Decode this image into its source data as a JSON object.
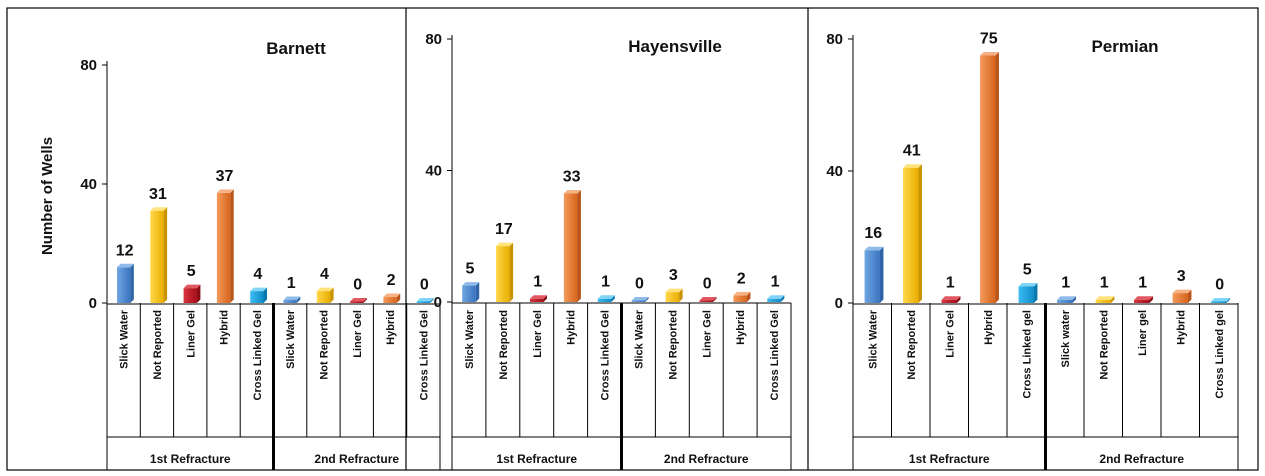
{
  "chart_data": [
    {
      "type": "bar",
      "title": "Barnett",
      "ylabel": "Number of Wells",
      "yticks": [
        0,
        40,
        80
      ],
      "ylim": [
        0,
        80
      ],
      "groups": [
        {
          "label": "1st Refracture",
          "categories": [
            "Slick Water",
            "Not Reported",
            "Liner Gel",
            "Hybrid",
            "Cross Linked Gel"
          ],
          "values": [
            12,
            31,
            5,
            37,
            4
          ]
        },
        {
          "label": "2nd Refracture",
          "categories": [
            "Slick Water",
            "Not Reported",
            "Liner Gel",
            "Hybrid",
            "Cross Linked Gel"
          ],
          "values": [
            1,
            4,
            0,
            2,
            0
          ]
        }
      ]
    },
    {
      "type": "bar",
      "title": "Hayensville",
      "ylabel": "",
      "yticks": [
        0,
        40,
        80
      ],
      "ylim": [
        0,
        80
      ],
      "groups": [
        {
          "label": "1st Refracture",
          "categories": [
            "Slick Water",
            "Not Reported",
            "Liner Gel",
            "Hybrid",
            "Cross Linked Gel"
          ],
          "values": [
            5,
            17,
            1,
            33,
            1
          ]
        },
        {
          "label": "2nd Refracture",
          "categories": [
            "Slick Water",
            "Not Reported",
            "Liner Gel",
            "Hybrid",
            "Cross Linked Gel"
          ],
          "values": [
            0,
            3,
            0,
            2,
            1
          ]
        }
      ]
    },
    {
      "type": "bar",
      "title": "Permian",
      "ylabel": "",
      "yticks": [
        0,
        40,
        80
      ],
      "ylim": [
        0,
        80
      ],
      "groups": [
        {
          "label": "1st Refracture",
          "categories": [
            "Slick Water",
            "Not Reported",
            "Liner Gel",
            "Hybrid",
            "Cross Linked gel"
          ],
          "values": [
            16,
            41,
            1,
            75,
            5
          ]
        },
        {
          "label": "2nd Refracture",
          "categories": [
            "Slick water",
            "Not Reported",
            "Liner gel",
            "Hybrid",
            "Cross Linked gel"
          ],
          "values": [
            1,
            1,
            1,
            3,
            0
          ]
        }
      ]
    }
  ],
  "colors": {
    "slick_water": "#4f8fd6",
    "not_reported": "#f7c10a",
    "liner_gel": "#c0131f",
    "hybrid": "#ea7d32",
    "cross_linked_gel": "#18a6e4",
    "frame": "#000000"
  }
}
